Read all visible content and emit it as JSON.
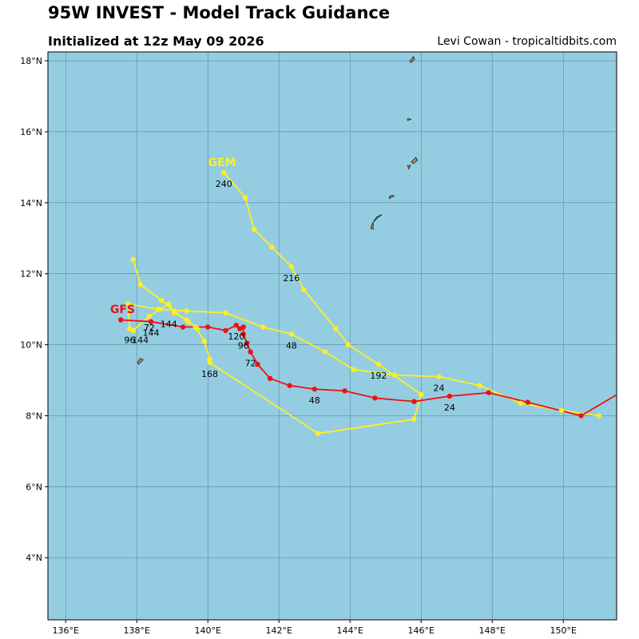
{
  "header": {
    "title": "95W INVEST - Model Track Guidance",
    "subtitle": "Initialized at 12z May 09 2026",
    "credit": "Levi Cowan - tropicaltidbits.com"
  },
  "colors": {
    "ocean": "#94cde2",
    "land": "#b08a5e",
    "grid": "#3f6f80",
    "gfs": "#ee1111",
    "gem": "#ffee22"
  },
  "chart_data": {
    "type": "line",
    "xlim": [
      135.5,
      151.5
    ],
    "ylim": [
      2.25,
      18.25
    ],
    "xticks": [
      136,
      138,
      140,
      142,
      144,
      146,
      148,
      150
    ],
    "yticks": [
      4,
      6,
      8,
      10,
      12,
      14,
      16,
      18
    ],
    "xtick_labels": [
      "136°E",
      "138°E",
      "140°E",
      "142°E",
      "144°E",
      "146°E",
      "148°E",
      "150°E"
    ],
    "ytick_labels": [
      "4°N",
      "6°N",
      "8°N",
      "10°N",
      "12°N",
      "14°N",
      "16°N",
      "18°N"
    ],
    "grid": true,
    "series": [
      {
        "name": "GFS",
        "color": "#ee1111",
        "label_at": [
          137.6,
          11.0
        ],
        "points": [
          [
            151.6,
            8.65
          ],
          [
            150.5,
            8.0
          ],
          [
            149.0,
            8.38
          ],
          [
            147.9,
            8.65
          ],
          [
            146.8,
            8.55
          ],
          [
            145.8,
            8.4
          ],
          [
            144.7,
            8.5
          ],
          [
            143.85,
            8.7
          ],
          [
            143.0,
            8.75
          ],
          [
            142.3,
            8.85
          ],
          [
            141.75,
            9.05
          ],
          [
            141.4,
            9.45
          ],
          [
            141.2,
            9.8
          ],
          [
            141.1,
            10.05
          ],
          [
            141.0,
            10.3
          ],
          [
            141.0,
            10.5
          ],
          [
            140.9,
            10.45
          ],
          [
            140.8,
            10.55
          ],
          [
            140.5,
            10.4
          ],
          [
            140.0,
            10.5
          ],
          [
            139.3,
            10.5
          ],
          [
            138.4,
            10.65
          ],
          [
            137.55,
            10.7
          ]
        ],
        "labels": [
          {
            "text": "24",
            "at": [
              146.8,
              8.55
            ]
          },
          {
            "text": "48",
            "at": [
              143.0,
              8.75
            ]
          },
          {
            "text": "72",
            "at": [
              141.2,
              9.8
            ]
          },
          {
            "text": "96",
            "at": [
              141.0,
              10.3
            ]
          },
          {
            "text": "120",
            "at": [
              140.8,
              10.55
            ]
          },
          {
            "text": "144",
            "at": [
              138.4,
              10.65
            ]
          }
        ]
      },
      {
        "name": "GEM",
        "color": "#ffee22",
        "label_at": [
          140.4,
          15.15
        ],
        "points": [
          [
            151.0,
            8.0
          ],
          [
            149.95,
            8.15
          ],
          [
            148.8,
            8.35
          ],
          [
            147.65,
            8.85
          ],
          [
            146.5,
            9.1
          ],
          [
            145.25,
            9.15
          ],
          [
            144.1,
            9.3
          ],
          [
            143.3,
            9.8
          ],
          [
            142.35,
            10.3
          ],
          [
            141.55,
            10.5
          ],
          [
            140.5,
            10.9
          ],
          [
            139.4,
            10.95
          ],
          [
            138.6,
            11.0
          ],
          [
            137.75,
            11.15
          ],
          [
            137.8,
            10.45
          ],
          [
            137.9,
            10.4
          ],
          [
            138.35,
            10.8
          ],
          [
            138.65,
            11.0
          ],
          [
            138.9,
            11.15
          ],
          [
            139.05,
            10.9
          ],
          [
            139.4,
            10.7
          ],
          [
            139.65,
            10.5
          ],
          [
            139.9,
            10.1
          ],
          [
            140.05,
            9.6
          ],
          [
            140.05,
            9.5
          ],
          [
            143.1,
            7.5
          ],
          [
            145.8,
            7.9
          ],
          [
            146.0,
            8.6
          ],
          [
            144.8,
            9.45
          ],
          [
            143.95,
            10.0
          ],
          [
            143.6,
            10.45
          ],
          [
            142.7,
            11.55
          ],
          [
            142.35,
            12.2
          ],
          [
            141.8,
            12.75
          ],
          [
            141.3,
            13.25
          ],
          [
            141.05,
            14.15
          ],
          [
            140.45,
            14.85
          ]
        ],
        "labels": [
          {
            "text": "24",
            "at": [
              146.5,
              9.1
            ]
          },
          {
            "text": "48",
            "at": [
              142.35,
              10.3
            ]
          },
          {
            "text": "72",
            "at": [
              138.35,
              10.8
            ]
          },
          {
            "text": "96",
            "at": [
              137.8,
              10.45
            ]
          },
          {
            "text": "144",
            "at": [
              138.9,
              10.9
            ]
          },
          {
            "text": "144",
            "at": [
              138.1,
              10.45
            ]
          },
          {
            "text": "168",
            "at": [
              140.05,
              9.5
            ]
          },
          {
            "text": "192",
            "at": [
              144.8,
              9.45
            ]
          },
          {
            "text": "216",
            "at": [
              142.35,
              12.2
            ]
          },
          {
            "text": "240",
            "at": [
              140.45,
              14.85
            ]
          }
        ],
        "branch": [
          [
            137.9,
            12.4
          ],
          [
            138.1,
            11.7
          ],
          [
            138.7,
            11.25
          ],
          [
            139.05,
            10.95
          ],
          [
            139.45,
            10.65
          ],
          [
            139.7,
            10.45
          ]
        ]
      }
    ],
    "islands": [
      [
        [
          145.72,
          17.95
        ],
        [
          145.82,
          18.05
        ],
        [
          145.78,
          18.12
        ],
        [
          145.68,
          17.98
        ]
      ],
      [
        [
          145.62,
          16.32
        ],
        [
          145.72,
          16.35
        ],
        [
          145.62,
          16.37
        ]
      ],
      [
        [
          145.78,
          15.1
        ],
        [
          145.9,
          15.2
        ],
        [
          145.85,
          15.28
        ],
        [
          145.72,
          15.15
        ]
      ],
      [
        [
          145.65,
          14.95
        ],
        [
          145.7,
          15.05
        ],
        [
          145.62,
          15.05
        ]
      ],
      [
        [
          145.1,
          14.12
        ],
        [
          145.25,
          14.2
        ],
        [
          145.12,
          14.2
        ]
      ],
      [
        [
          144.63,
          13.42
        ],
        [
          144.75,
          13.6
        ],
        [
          144.9,
          13.67
        ],
        [
          144.75,
          13.55
        ],
        [
          144.65,
          13.45
        ],
        [
          144.65,
          13.25
        ],
        [
          144.58,
          13.28
        ]
      ],
      [
        [
          138.05,
          9.45
        ],
        [
          138.18,
          9.58
        ],
        [
          138.1,
          9.62
        ],
        [
          138.02,
          9.5
        ]
      ]
    ]
  }
}
